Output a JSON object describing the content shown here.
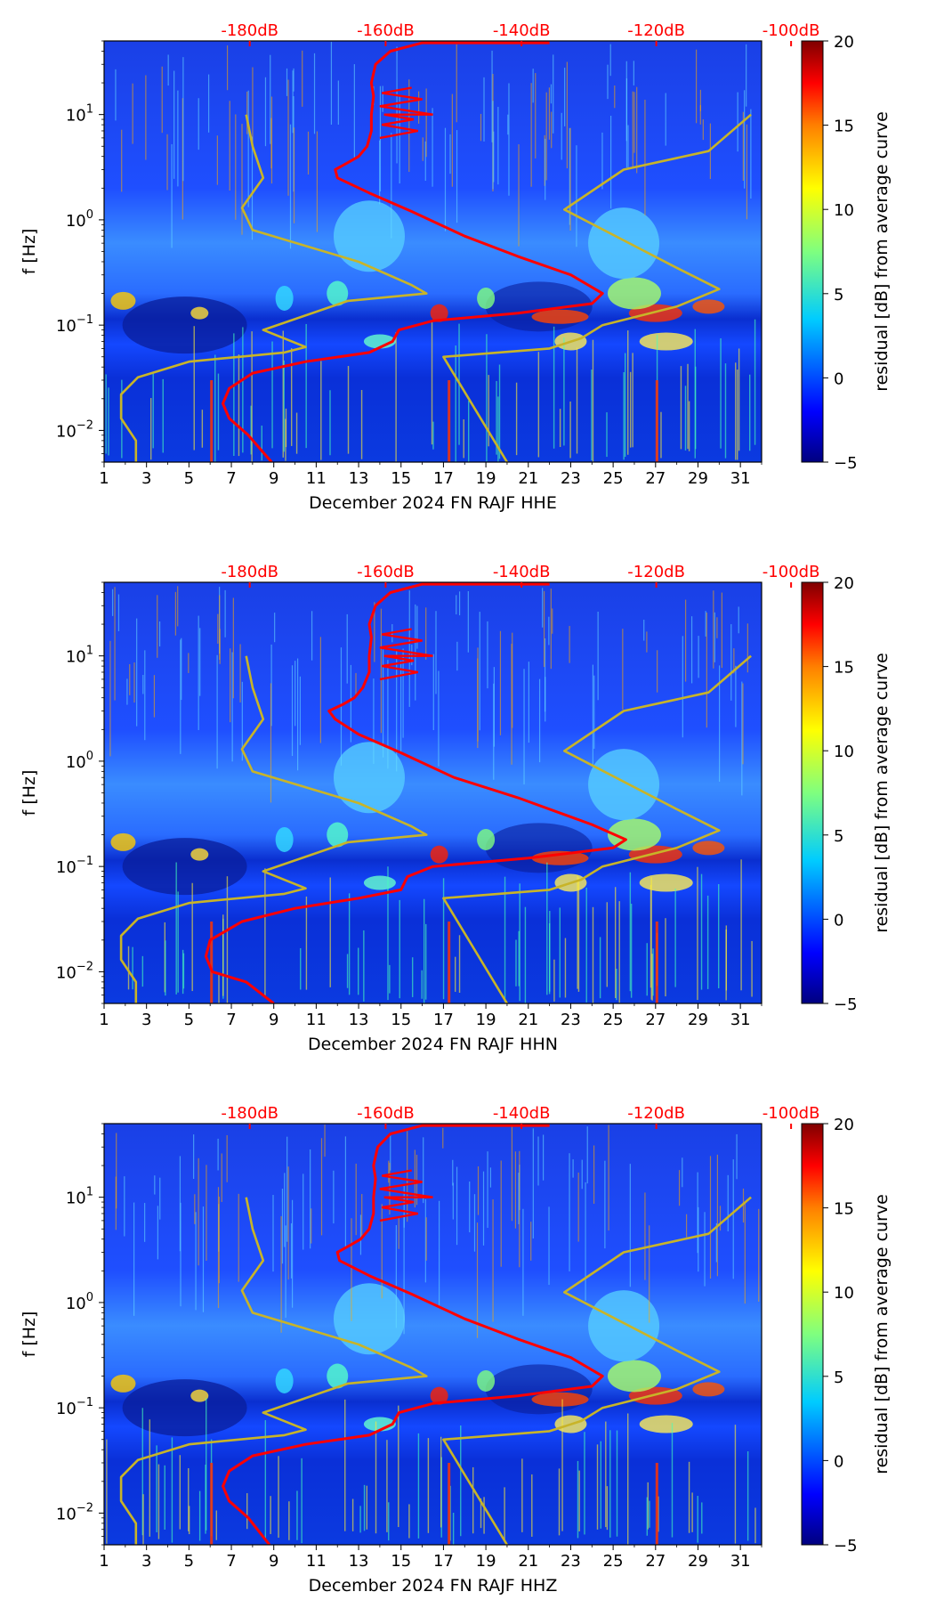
{
  "colors": {
    "noise_curve": "#ff0000",
    "model_curve": "#c8b428",
    "db_scale_text": "#ff0000",
    "colormap": [
      "#00007f",
      "#0000ff",
      "#007fff",
      "#00ffff",
      "#7fff7f",
      "#ffff00",
      "#ff7f00",
      "#ff0000",
      "#7f0000"
    ]
  },
  "shared": {
    "x_ticks": [
      "1",
      "3",
      "5",
      "7",
      "9",
      "11",
      "13",
      "15",
      "17",
      "19",
      "21",
      "23",
      "25",
      "27",
      "29",
      "31"
    ],
    "x_tick_values": [
      1,
      3,
      5,
      7,
      9,
      11,
      13,
      15,
      17,
      19,
      21,
      23,
      25,
      27,
      29,
      31
    ],
    "y_ticks": [
      {
        "value": 0.01,
        "mantissa": "10",
        "exp": "−2"
      },
      {
        "value": 0.1,
        "mantissa": "10",
        "exp": "−1"
      },
      {
        "value": 1,
        "mantissa": "10",
        "exp": "0"
      },
      {
        "value": 10,
        "mantissa": "10",
        "exp": "1"
      }
    ],
    "db_scale_labels": [
      "-180dB",
      "-160dB",
      "-140dB",
      "-120dB",
      "-100dB"
    ],
    "db_scale_positions_day": [
      7.2,
      19.6,
      32.0,
      44.3,
      56.6
    ],
    "colorbar_ticks": [
      "20",
      "15",
      "10",
      "5",
      "0",
      "−5"
    ],
    "colorbar_values": [
      20,
      15,
      10,
      5,
      0,
      -5
    ],
    "colorbar_range": [
      -5,
      20
    ],
    "colorbar_label": "residual [dB] from average curve",
    "ylabel": "f [Hz]"
  },
  "chart_data": [
    {
      "type": "heatmap",
      "xlabel": "December 2024 FN RAJF  HHE",
      "ylabel": "f [Hz]",
      "xlim": [
        1,
        32
      ],
      "ylim": [
        0.005,
        50
      ],
      "yscale": "log",
      "colorbar": {
        "label": "residual [dB] from average curve",
        "range": [
          -5,
          20
        ]
      },
      "series": [
        {
          "name": "noise_curve_red",
          "points": [
            [
              8.9,
              0.005
            ],
            [
              7.8,
              0.009
            ],
            [
              6.9,
              0.013
            ],
            [
              6.6,
              0.018
            ],
            [
              6.9,
              0.025
            ],
            [
              8.0,
              0.035
            ],
            [
              10.5,
              0.045
            ],
            [
              13.5,
              0.055
            ],
            [
              14.6,
              0.07
            ],
            [
              14.9,
              0.09
            ],
            [
              16.5,
              0.11
            ],
            [
              20.5,
              0.13
            ],
            [
              24.0,
              0.16
            ],
            [
              24.5,
              0.2
            ],
            [
              23.0,
              0.3
            ],
            [
              20.5,
              0.45
            ],
            [
              18.0,
              0.7
            ],
            [
              15.5,
              1.2
            ],
            [
              13.5,
              1.8
            ],
            [
              12.0,
              2.5
            ],
            [
              11.9,
              3.0
            ],
            [
              12.5,
              3.5
            ],
            [
              13.0,
              4.0
            ],
            [
              13.4,
              5.0
            ],
            [
              13.6,
              7.0
            ],
            [
              13.6,
              10.0
            ],
            [
              13.7,
              15.0
            ],
            [
              13.6,
              20.0
            ],
            [
              13.8,
              30.0
            ],
            [
              14.5,
              40.0
            ],
            [
              16.0,
              48.0
            ],
            [
              22.0,
              48.0
            ]
          ]
        },
        {
          "name": "model_curve_left",
          "points": [
            [
              2.5,
              0.005
            ],
            [
              2.5,
              0.008
            ],
            [
              1.8,
              0.013
            ],
            [
              1.8,
              0.022
            ],
            [
              2.6,
              0.032
            ],
            [
              5.0,
              0.045
            ],
            [
              9.5,
              0.055
            ],
            [
              10.5,
              0.062
            ],
            [
              8.5,
              0.09
            ],
            [
              12.5,
              0.17
            ],
            [
              16.2,
              0.2
            ],
            [
              15.5,
              0.24
            ],
            [
              13.0,
              0.4
            ],
            [
              8.0,
              0.8
            ],
            [
              7.5,
              1.3
            ],
            [
              8.5,
              2.5
            ],
            [
              8.0,
              5.0
            ],
            [
              7.7,
              10.0
            ]
          ]
        },
        {
          "name": "model_curve_right",
          "points": [
            [
              20.0,
              0.005
            ],
            [
              17.0,
              0.05
            ],
            [
              22.0,
              0.06
            ],
            [
              23.5,
              0.075
            ],
            [
              24.5,
              0.1
            ],
            [
              28.0,
              0.15
            ],
            [
              30.0,
              0.22
            ],
            [
              28.0,
              0.35
            ],
            [
              22.7,
              1.25
            ],
            [
              25.5,
              3.0
            ],
            [
              29.5,
              4.5
            ],
            [
              31.5,
              10.0
            ]
          ]
        }
      ]
    },
    {
      "type": "heatmap",
      "xlabel": "December 2024 FN RAJF  HHN",
      "ylabel": "f [Hz]",
      "xlim": [
        1,
        32
      ],
      "ylim": [
        0.005,
        50
      ],
      "yscale": "log",
      "colorbar": {
        "label": "residual [dB] from average curve",
        "range": [
          -5,
          20
        ]
      },
      "series": [
        {
          "name": "noise_curve_red",
          "points": [
            [
              9.0,
              0.005
            ],
            [
              7.7,
              0.008
            ],
            [
              6.1,
              0.01
            ],
            [
              5.8,
              0.014
            ],
            [
              6.0,
              0.02
            ],
            [
              7.5,
              0.03
            ],
            [
              10.0,
              0.04
            ],
            [
              13.0,
              0.05
            ],
            [
              15.0,
              0.06
            ],
            [
              15.3,
              0.08
            ],
            [
              16.5,
              0.1
            ],
            [
              21.0,
              0.12
            ],
            [
              25.0,
              0.15
            ],
            [
              25.6,
              0.18
            ],
            [
              24.0,
              0.25
            ],
            [
              20.5,
              0.45
            ],
            [
              17.5,
              0.7
            ],
            [
              15.0,
              1.2
            ],
            [
              13.0,
              1.8
            ],
            [
              11.9,
              2.5
            ],
            [
              11.6,
              3.0
            ],
            [
              12.3,
              3.5
            ],
            [
              12.8,
              4.0
            ],
            [
              13.2,
              5.0
            ],
            [
              13.5,
              7.0
            ],
            [
              13.5,
              10.0
            ],
            [
              13.6,
              15.0
            ],
            [
              13.5,
              20.0
            ],
            [
              13.8,
              30.0
            ],
            [
              14.5,
              40.0
            ],
            [
              16.0,
              48.0
            ],
            [
              22.0,
              48.0
            ]
          ]
        },
        {
          "name": "model_curve_left",
          "points": [
            [
              2.5,
              0.005
            ],
            [
              2.5,
              0.008
            ],
            [
              1.8,
              0.013
            ],
            [
              1.8,
              0.022
            ],
            [
              2.6,
              0.032
            ],
            [
              5.0,
              0.045
            ],
            [
              9.5,
              0.055
            ],
            [
              10.5,
              0.062
            ],
            [
              8.5,
              0.09
            ],
            [
              12.5,
              0.17
            ],
            [
              16.2,
              0.2
            ],
            [
              15.5,
              0.24
            ],
            [
              13.0,
              0.4
            ],
            [
              8.0,
              0.8
            ],
            [
              7.5,
              1.3
            ],
            [
              8.5,
              2.5
            ],
            [
              8.0,
              5.0
            ],
            [
              7.7,
              10.0
            ]
          ]
        },
        {
          "name": "model_curve_right",
          "points": [
            [
              20.0,
              0.005
            ],
            [
              17.0,
              0.05
            ],
            [
              22.0,
              0.06
            ],
            [
              23.5,
              0.075
            ],
            [
              24.5,
              0.1
            ],
            [
              28.0,
              0.15
            ],
            [
              30.0,
              0.22
            ],
            [
              28.0,
              0.35
            ],
            [
              22.7,
              1.25
            ],
            [
              25.5,
              3.0
            ],
            [
              29.5,
              4.5
            ],
            [
              31.5,
              10.0
            ]
          ]
        }
      ]
    },
    {
      "type": "heatmap",
      "xlabel": "December 2024 FN RAJF  HHZ",
      "ylabel": "f [Hz]",
      "xlim": [
        1,
        32
      ],
      "ylim": [
        0.005,
        50
      ],
      "yscale": "log",
      "colorbar": {
        "label": "residual [dB] from average curve",
        "range": [
          -5,
          20
        ]
      },
      "series": [
        {
          "name": "noise_curve_red",
          "points": [
            [
              8.8,
              0.005
            ],
            [
              7.8,
              0.009
            ],
            [
              6.9,
              0.013
            ],
            [
              6.6,
              0.018
            ],
            [
              6.9,
              0.025
            ],
            [
              8.0,
              0.035
            ],
            [
              10.5,
              0.045
            ],
            [
              13.5,
              0.055
            ],
            [
              14.6,
              0.07
            ],
            [
              14.9,
              0.09
            ],
            [
              16.5,
              0.11
            ],
            [
              20.5,
              0.13
            ],
            [
              24.0,
              0.16
            ],
            [
              24.5,
              0.2
            ],
            [
              23.0,
              0.3
            ],
            [
              20.5,
              0.45
            ],
            [
              18.0,
              0.7
            ],
            [
              15.5,
              1.2
            ],
            [
              13.5,
              1.8
            ],
            [
              12.1,
              2.5
            ],
            [
              12.0,
              3.0
            ],
            [
              12.6,
              3.5
            ],
            [
              13.1,
              4.0
            ],
            [
              13.5,
              5.0
            ],
            [
              13.7,
              7.0
            ],
            [
              13.7,
              10.0
            ],
            [
              13.8,
              15.0
            ],
            [
              13.7,
              20.0
            ],
            [
              13.9,
              30.0
            ],
            [
              14.5,
              40.0
            ],
            [
              16.0,
              48.0
            ],
            [
              22.0,
              48.0
            ]
          ]
        },
        {
          "name": "model_curve_left",
          "points": [
            [
              2.5,
              0.005
            ],
            [
              2.5,
              0.008
            ],
            [
              1.8,
              0.013
            ],
            [
              1.8,
              0.022
            ],
            [
              2.6,
              0.032
            ],
            [
              5.0,
              0.045
            ],
            [
              9.5,
              0.055
            ],
            [
              10.5,
              0.062
            ],
            [
              8.5,
              0.09
            ],
            [
              12.5,
              0.17
            ],
            [
              16.2,
              0.2
            ],
            [
              15.5,
              0.24
            ],
            [
              13.0,
              0.4
            ],
            [
              8.0,
              0.8
            ],
            [
              7.5,
              1.3
            ],
            [
              8.5,
              2.5
            ],
            [
              8.0,
              5.0
            ],
            [
              7.7,
              10.0
            ]
          ]
        },
        {
          "name": "model_curve_right",
          "points": [
            [
              20.0,
              0.005
            ],
            [
              17.0,
              0.05
            ],
            [
              22.0,
              0.06
            ],
            [
              23.5,
              0.075
            ],
            [
              24.5,
              0.1
            ],
            [
              28.0,
              0.15
            ],
            [
              30.0,
              0.22
            ],
            [
              28.0,
              0.35
            ],
            [
              22.7,
              1.25
            ],
            [
              25.5,
              3.0
            ],
            [
              29.5,
              4.5
            ],
            [
              31.5,
              10.0
            ]
          ]
        }
      ]
    }
  ]
}
